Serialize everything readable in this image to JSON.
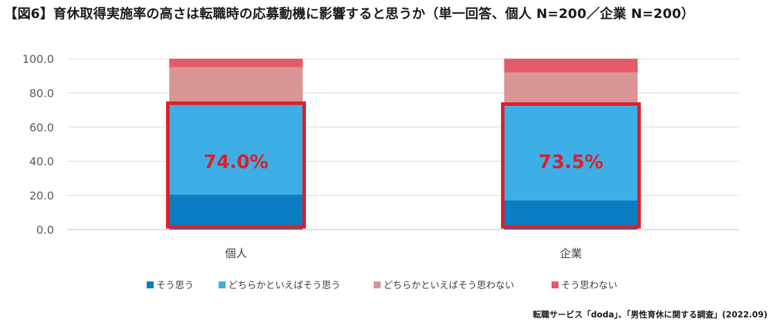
{
  "title": "【図6】育休取得実施率の高さは転職時の応募動機に影響すると思うか（単一回答、個人 N=200／企業 N=200）",
  "source": "転職サービス「doda」、「男性育休に関する調査」(2022.09)",
  "chart_data": {
    "type": "bar",
    "stacked": true,
    "categories": [
      "個人",
      "企業"
    ],
    "series": [
      {
        "name": "そう思う",
        "values": [
          20.5,
          17.0
        ],
        "color": "#0b7dc2"
      },
      {
        "name": "どちらかといえばそう思う",
        "values": [
          53.5,
          56.5
        ],
        "color": "#3daee6"
      },
      {
        "name": "どちらかといえばそう思わない",
        "values": [
          21.0,
          18.5
        ],
        "color": "#d99594"
      },
      {
        "name": "そう思わない",
        "values": [
          5.0,
          8.0
        ],
        "color": "#e25b67"
      }
    ],
    "yticks": [
      "0.0",
      "20.0",
      "40.0",
      "60.0",
      "80.0",
      "100.0"
    ],
    "ylim": [
      0,
      100
    ],
    "highlight_labels": [
      "74.0%",
      "73.5%"
    ],
    "highlight_color": "#e01e26",
    "grid": true,
    "legend_position": "bottom"
  }
}
